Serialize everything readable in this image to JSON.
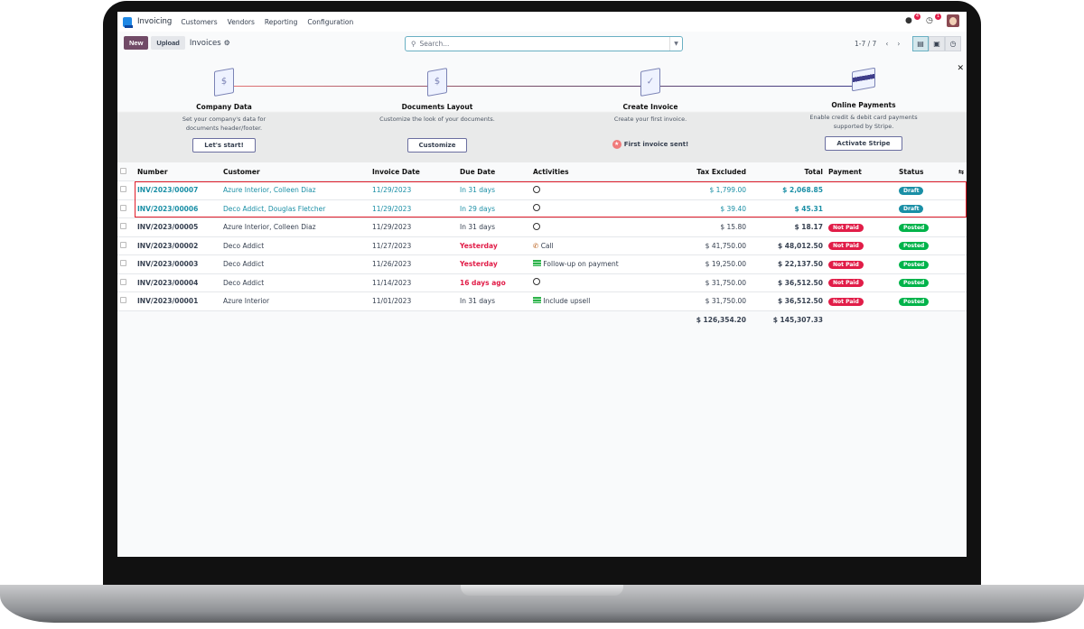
{
  "nav": {
    "app": "Invoicing",
    "menu": [
      "Customers",
      "Vendors",
      "Reporting",
      "Configuration"
    ],
    "messages_count": "4",
    "activities_count": "1"
  },
  "control": {
    "new_label": "New",
    "upload_label": "Upload",
    "title": "Invoices",
    "search_placeholder": "Search...",
    "pager": "1-7 / 7"
  },
  "onboarding": {
    "steps": [
      {
        "title": "Company Data",
        "desc": "Set your company's data for documents header/footer.",
        "button": "Let's start!"
      },
      {
        "title": "Documents Layout",
        "desc": "Customize the look of your documents.",
        "button": "Customize"
      },
      {
        "title": "Create Invoice",
        "desc": "Create your first invoice.",
        "done": "First invoice sent!"
      },
      {
        "title": "Online Payments",
        "desc": "Enable credit & debit card payments supported by Stripe.",
        "button": "Activate Stripe"
      }
    ]
  },
  "table": {
    "headers": {
      "number": "Number",
      "customer": "Customer",
      "invoice_date": "Invoice Date",
      "due_date": "Due Date",
      "activities": "Activities",
      "tax_excluded": "Tax Excluded",
      "total": "Total",
      "payment": "Payment",
      "status": "Status"
    },
    "rows": [
      {
        "number": "INV/2023/00007",
        "customer": "Azure Interior, Colleen Diaz",
        "invoice_date": "11/29/2023",
        "due_date": "In 31 days",
        "activity": "",
        "tax_excluded": "$ 1,799.00",
        "total": "$ 2,068.85",
        "payment": "",
        "status": "Draft"
      },
      {
        "number": "INV/2023/00006",
        "customer": "Deco Addict, Douglas Fletcher",
        "invoice_date": "11/29/2023",
        "due_date": "In 29 days",
        "activity": "",
        "tax_excluded": "$ 39.40",
        "total": "$ 45.31",
        "payment": "",
        "status": "Draft"
      },
      {
        "number": "INV/2023/00005",
        "customer": "Azure Interior, Colleen Diaz",
        "invoice_date": "11/29/2023",
        "due_date": "In 31 days",
        "activity": "",
        "tax_excluded": "$ 15.80",
        "total": "$ 18.17",
        "payment": "Not Paid",
        "status": "Posted"
      },
      {
        "number": "INV/2023/00002",
        "customer": "Deco Addict",
        "invoice_date": "11/27/2023",
        "due_date": "Yesterday",
        "activity": "Call",
        "tax_excluded": "$ 41,750.00",
        "total": "$ 48,012.50",
        "payment": "Not Paid",
        "status": "Posted"
      },
      {
        "number": "INV/2023/00003",
        "customer": "Deco Addict",
        "invoice_date": "11/26/2023",
        "due_date": "Yesterday",
        "activity": "Follow-up on payment",
        "tax_excluded": "$ 19,250.00",
        "total": "$ 22,137.50",
        "payment": "Not Paid",
        "status": "Posted"
      },
      {
        "number": "INV/2023/00004",
        "customer": "Deco Addict",
        "invoice_date": "11/14/2023",
        "due_date": "16 days ago",
        "activity": "",
        "tax_excluded": "$ 31,750.00",
        "total": "$ 36,512.50",
        "payment": "Not Paid",
        "status": "Posted"
      },
      {
        "number": "INV/2023/00001",
        "customer": "Azure Interior",
        "invoice_date": "11/01/2023",
        "due_date": "In 31 days",
        "activity": "Include upsell",
        "tax_excluded": "$ 31,750.00",
        "total": "$ 36,512.50",
        "payment": "Not Paid",
        "status": "Posted"
      }
    ],
    "totals": {
      "tax_excluded": "$ 126,354.20",
      "total": "$ 145,307.33"
    }
  },
  "colors": {
    "brand": "#714b67",
    "draft": "#1a8fa6",
    "posted": "#00b34a",
    "not_paid": "#e11d48",
    "highlight": "#e11d2a"
  }
}
